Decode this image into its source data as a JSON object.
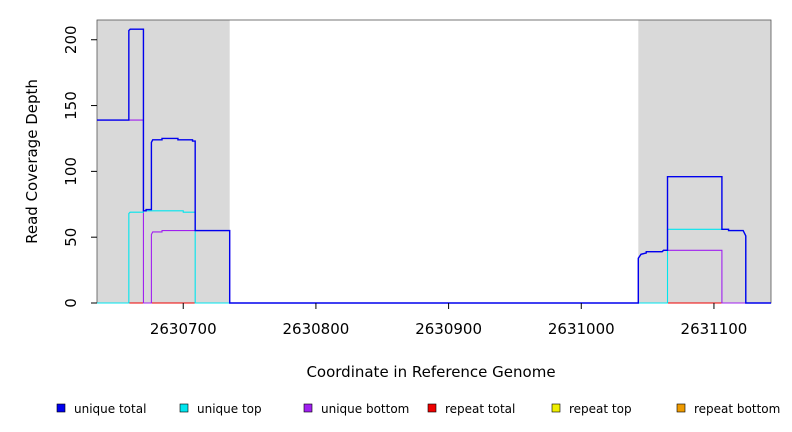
{
  "chart_data": {
    "type": "line",
    "title": "",
    "xlabel": "Coordinate in Reference Genome",
    "ylabel": "Read Coverage Depth",
    "xlim": [
      2630635,
      2631143
    ],
    "ylim": [
      0,
      215
    ],
    "x_ticks": [
      2630700,
      2630800,
      2630900,
      2631000,
      2631100
    ],
    "y_ticks": [
      0,
      50,
      100,
      150,
      200
    ],
    "x_tick_labels": [
      "2630700",
      "2630800",
      "2630900",
      "2631000",
      "2631100"
    ],
    "y_tick_labels": [
      "0",
      "50",
      "100",
      "150",
      "200"
    ],
    "shaded_regions": [
      {
        "x0": 2630635,
        "x1": 2630735
      },
      {
        "x0": 2631043,
        "x1": 2631143
      }
    ],
    "shade_color": "#d9d9d9",
    "series": [
      {
        "name": "unique total",
        "color": "#0000ee",
        "points": [
          [
            2630635,
            139
          ],
          [
            2630659,
            139
          ],
          [
            2630659,
            207
          ],
          [
            2630660,
            208
          ],
          [
            2630670,
            208
          ],
          [
            2630670,
            70
          ],
          [
            2630672,
            70
          ],
          [
            2630672,
            71
          ],
          [
            2630676,
            71
          ],
          [
            2630676,
            122
          ],
          [
            2630677,
            124
          ],
          [
            2630684,
            124
          ],
          [
            2630684,
            125
          ],
          [
            2630696,
            125
          ],
          [
            2630696,
            124
          ],
          [
            2630707,
            124
          ],
          [
            2630707,
            123
          ],
          [
            2630709,
            123
          ],
          [
            2630709,
            55
          ],
          [
            2630735,
            55
          ],
          [
            2630735,
            0
          ],
          [
            2631043,
            0
          ],
          [
            2631043,
            34
          ],
          [
            2631045,
            37
          ],
          [
            2631049,
            38
          ],
          [
            2631049,
            39
          ],
          [
            2631061,
            39
          ],
          [
            2631062,
            40
          ],
          [
            2631065,
            40
          ],
          [
            2631065,
            96
          ],
          [
            2631106,
            96
          ],
          [
            2631106,
            56
          ],
          [
            2631111,
            56
          ],
          [
            2631111,
            55
          ],
          [
            2631122,
            55
          ],
          [
            2631124,
            51
          ],
          [
            2631124,
            0
          ],
          [
            2631143,
            0
          ]
        ]
      },
      {
        "name": "unique top",
        "color": "#00e5ee",
        "points": [
          [
            2630635,
            0
          ],
          [
            2630659,
            0
          ],
          [
            2630659,
            68
          ],
          [
            2630660,
            69
          ],
          [
            2630670,
            69
          ],
          [
            2630670,
            70
          ],
          [
            2630700,
            70
          ],
          [
            2630700,
            69
          ],
          [
            2630709,
            69
          ],
          [
            2630709,
            0
          ],
          [
            2631065,
            0
          ],
          [
            2631065,
            56
          ],
          [
            2631111,
            56
          ],
          [
            2631111,
            55
          ],
          [
            2631122,
            55
          ],
          [
            2631124,
            51
          ],
          [
            2631124,
            0
          ],
          [
            2631143,
            0
          ]
        ]
      },
      {
        "name": "unique bottom",
        "color": "#a020f0",
        "points": [
          [
            2630635,
            139
          ],
          [
            2630670,
            139
          ],
          [
            2630670,
            0
          ],
          [
            2630676,
            0
          ],
          [
            2630676,
            52
          ],
          [
            2630677,
            54
          ],
          [
            2630684,
            54
          ],
          [
            2630684,
            55
          ],
          [
            2630709,
            55
          ],
          [
            2630735,
            55
          ],
          [
            2630735,
            0
          ],
          [
            2631043,
            0
          ],
          [
            2631043,
            34
          ],
          [
            2631045,
            37
          ],
          [
            2631049,
            38
          ],
          [
            2631049,
            39
          ],
          [
            2631061,
            39
          ],
          [
            2631062,
            40
          ],
          [
            2631106,
            40
          ],
          [
            2631106,
            0
          ],
          [
            2631143,
            0
          ]
        ]
      },
      {
        "name": "repeat total",
        "color": "#ee0000",
        "points": [
          [
            2630635,
            0
          ],
          [
            2631143,
            0
          ]
        ]
      },
      {
        "name": "repeat top",
        "color": "#eeee00",
        "points": [
          [
            2630635,
            0
          ],
          [
            2631143,
            0
          ]
        ]
      },
      {
        "name": "repeat bottom",
        "color": "#ee9a00",
        "points": [
          [
            2630635,
            0
          ],
          [
            2631143,
            0
          ]
        ]
      }
    ],
    "legend": [
      "unique total",
      "unique top",
      "unique bottom",
      "repeat total",
      "repeat top",
      "repeat bottom"
    ],
    "legend_position": "bottom"
  }
}
